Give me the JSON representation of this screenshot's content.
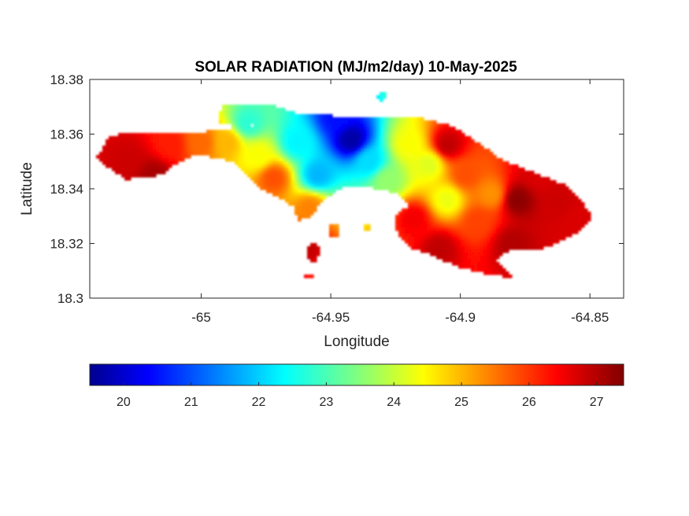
{
  "chart_data": {
    "type": "heatmap",
    "title": "SOLAR RADIATION (MJ/m2/day) 10-May-2025",
    "xlabel": "Longitude",
    "ylabel": "Latitude",
    "xlim": [
      -65.043,
      -64.837
    ],
    "ylim": [
      18.3,
      18.38
    ],
    "x_ticks": [
      -65,
      -64.95,
      -64.9,
      -64.85
    ],
    "x_tick_labels": [
      "-65",
      "-64.95",
      "-64.9",
      "-64.85"
    ],
    "y_ticks": [
      18.3,
      18.32,
      18.34,
      18.36,
      18.38
    ],
    "y_tick_labels": [
      "18.3",
      "18.32",
      "18.34",
      "18.36",
      "18.38"
    ],
    "grid": false,
    "colormap": "jet",
    "colorbar": {
      "orientation": "horizontal",
      "placement": "below",
      "range": [
        19.5,
        27.4
      ],
      "ticks": [
        20,
        21,
        22,
        23,
        24,
        25,
        26,
        27
      ],
      "tick_labels": [
        "20",
        "21",
        "22",
        "23",
        "24",
        "25",
        "26",
        "27"
      ]
    },
    "value_points": [
      {
        "lon": -65.028,
        "lat": 18.351,
        "value": 26.8
      },
      {
        "lon": -65.018,
        "lat": 18.345,
        "value": 27.1
      },
      {
        "lon": -65.012,
        "lat": 18.356,
        "value": 26.2
      },
      {
        "lon": -65.0,
        "lat": 18.357,
        "value": 25.6
      },
      {
        "lon": -64.99,
        "lat": 18.357,
        "value": 25.0
      },
      {
        "lon": -64.982,
        "lat": 18.364,
        "value": 22.8
      },
      {
        "lon": -64.978,
        "lat": 18.352,
        "value": 24.4
      },
      {
        "lon": -64.972,
        "lat": 18.344,
        "value": 25.8
      },
      {
        "lon": -64.963,
        "lat": 18.357,
        "value": 22.4
      },
      {
        "lon": -64.955,
        "lat": 18.345,
        "value": 21.9
      },
      {
        "lon": -64.958,
        "lat": 18.333,
        "value": 25.4
      },
      {
        "lon": -64.948,
        "lat": 18.366,
        "value": 20.6
      },
      {
        "lon": -64.942,
        "lat": 18.358,
        "value": 19.8
      },
      {
        "lon": -64.935,
        "lat": 18.35,
        "value": 22.2
      },
      {
        "lon": -64.928,
        "lat": 18.343,
        "value": 23.6
      },
      {
        "lon": -64.92,
        "lat": 18.356,
        "value": 24.4
      },
      {
        "lon": -64.912,
        "lat": 18.349,
        "value": 24.2
      },
      {
        "lon": -64.905,
        "lat": 18.356,
        "value": 26.9
      },
      {
        "lon": -64.905,
        "lat": 18.336,
        "value": 24.3
      },
      {
        "lon": -64.898,
        "lat": 18.345,
        "value": 25.8
      },
      {
        "lon": -64.893,
        "lat": 18.328,
        "value": 25.9
      },
      {
        "lon": -64.888,
        "lat": 18.338,
        "value": 25.3
      },
      {
        "lon": -64.878,
        "lat": 18.336,
        "value": 27.3
      },
      {
        "lon": -64.87,
        "lat": 18.345,
        "value": 26.7
      },
      {
        "lon": -64.862,
        "lat": 18.335,
        "value": 26.8
      },
      {
        "lon": -64.908,
        "lat": 18.318,
        "value": 26.9
      },
      {
        "lon": -64.88,
        "lat": 18.32,
        "value": 27.0
      },
      {
        "lon": -64.918,
        "lat": 18.329,
        "value": 26.5
      },
      {
        "lon": -64.855,
        "lat": 18.329,
        "value": 26.7
      },
      {
        "lon": -64.96,
        "lat": 18.32,
        "value": 26.9
      }
    ]
  }
}
